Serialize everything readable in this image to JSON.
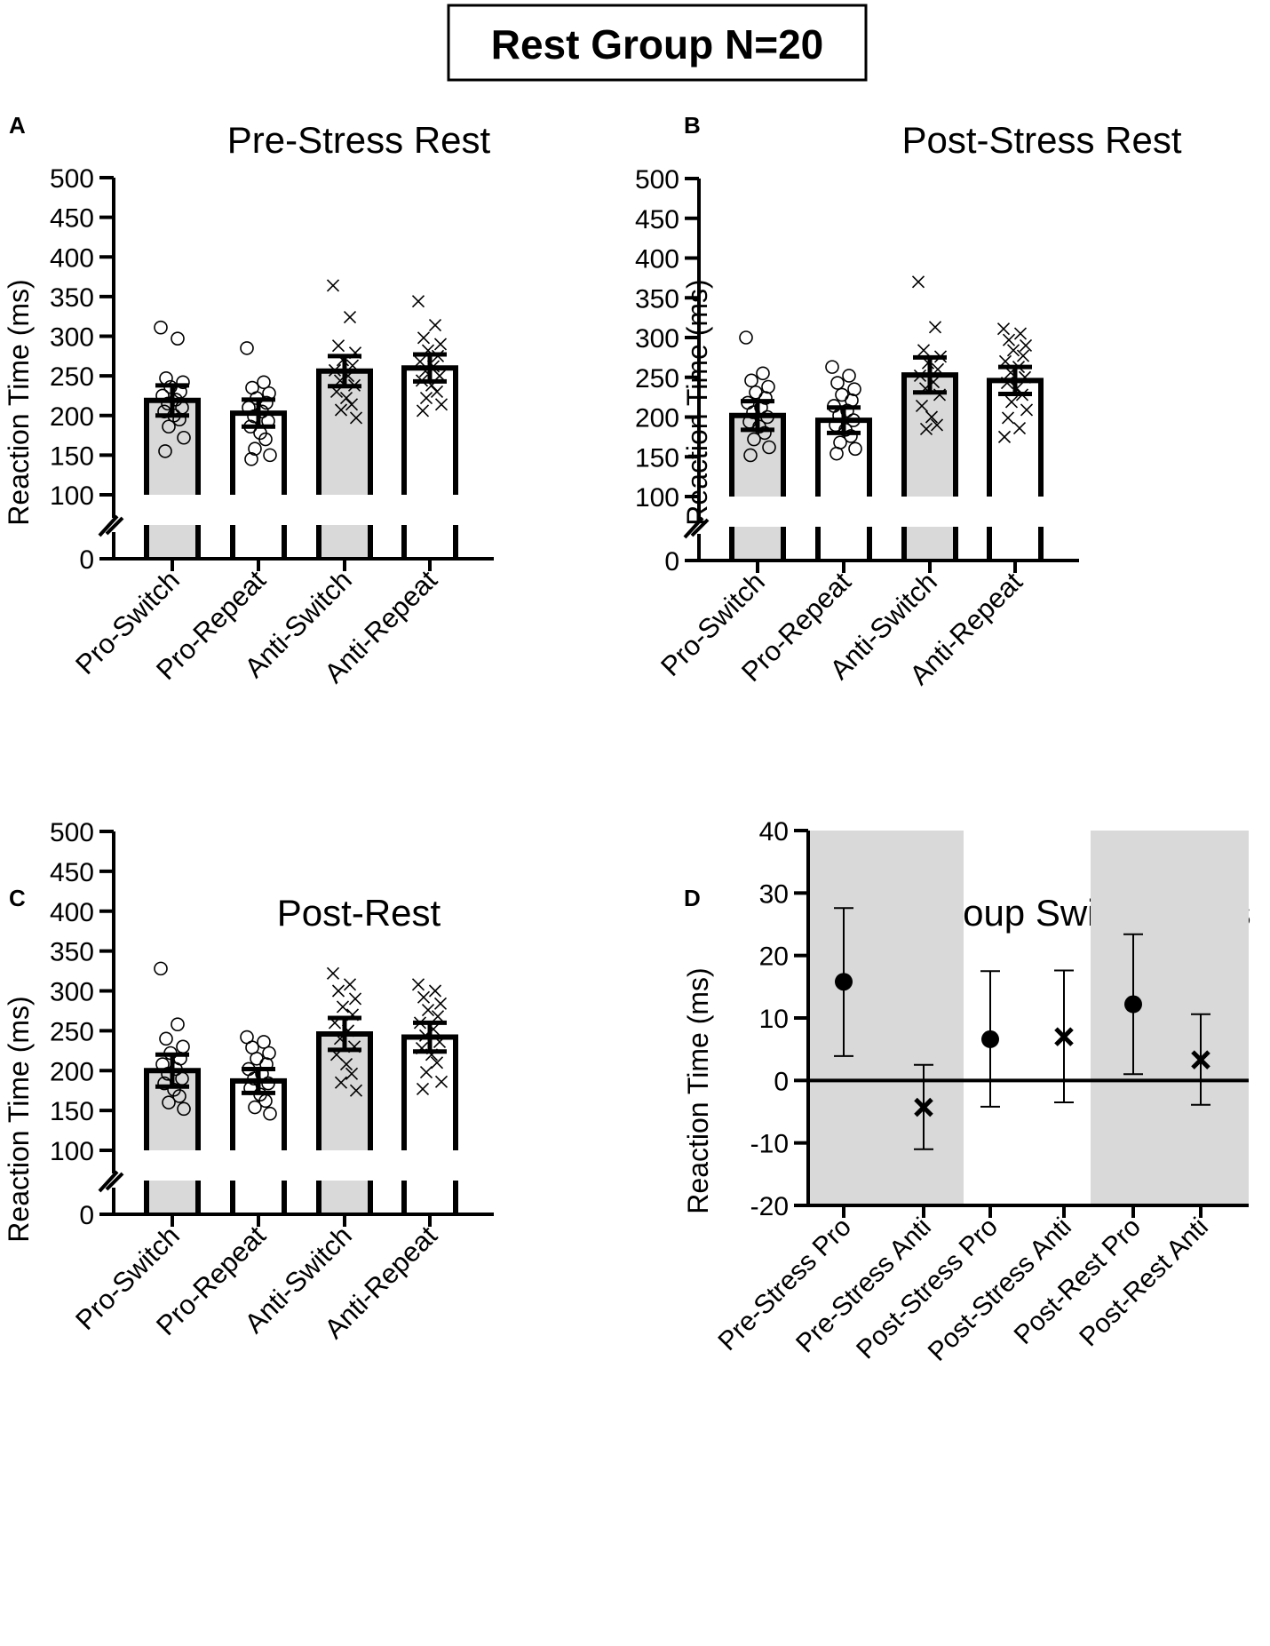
{
  "figure_title": "Rest Group N=20",
  "chart_data": [
    {
      "panel_letter": "A",
      "type": "bar",
      "title": "Pre-Stress Rest",
      "ylabel": "Reaction Time (ms)",
      "xlabel": "",
      "ylim": [
        0,
        500
      ],
      "axis_break": [
        0,
        100
      ],
      "yticks": [
        "0",
        "100",
        "150",
        "200",
        "250",
        "300",
        "350",
        "400",
        "450",
        "500"
      ],
      "categories": [
        "Pro-Switch",
        "Pro-Repeat",
        "Anti-Switch",
        "Anti-Repeat"
      ],
      "values": [
        219,
        203,
        256,
        260
      ],
      "sem": [
        19,
        17,
        19,
        17
      ],
      "bar_fill": [
        "#d9d9d9",
        "#ffffff",
        "#d9d9d9",
        "#ffffff"
      ],
      "points": [
        [
          311,
          297,
          247,
          242,
          236,
          230,
          225,
          220,
          215,
          210,
          205,
          200,
          195,
          186,
          172,
          155
        ],
        [
          285,
          242,
          235,
          228,
          222,
          216,
          210,
          205,
          199,
          193,
          186,
          178,
          170,
          158,
          150,
          145
        ],
        [
          364,
          324,
          288,
          279,
          270,
          263,
          257,
          250,
          244,
          238,
          230,
          222,
          214,
          207,
          197
        ],
        [
          344,
          314,
          298,
          290,
          282,
          275,
          268,
          262,
          256,
          250,
          244,
          238,
          230,
          222,
          214,
          206
        ]
      ],
      "markers": [
        "circle",
        "circle",
        "x",
        "x"
      ]
    },
    {
      "panel_letter": "B",
      "type": "bar",
      "title": "Post-Stress Rest",
      "ylabel": "Reaction Time (ms)",
      "xlabel": "",
      "ylim": [
        0,
        500
      ],
      "axis_break": [
        0,
        100
      ],
      "yticks": [
        "0",
        "100",
        "150",
        "200",
        "250",
        "300",
        "350",
        "400",
        "450",
        "500"
      ],
      "categories": [
        "Pro-Switch",
        "Pro-Repeat",
        "Anti-Switch",
        "Anti-Repeat"
      ],
      "values": [
        202,
        196,
        253,
        246
      ],
      "sem": [
        18,
        16,
        22,
        17
      ],
      "bar_fill": [
        "#d9d9d9",
        "#ffffff",
        "#d9d9d9",
        "#ffffff"
      ],
      "points": [
        [
          300,
          255,
          246,
          238,
          231,
          224,
          218,
          212,
          206,
          200,
          194,
          188,
          180,
          172,
          162,
          152
        ],
        [
          263,
          252,
          243,
          235,
          228,
          221,
          214,
          208,
          202,
          196,
          190,
          184,
          176,
          168,
          160,
          154
        ],
        [
          370,
          313,
          284,
          276,
          268,
          260,
          252,
          244,
          236,
          228,
          214,
          200,
          190,
          185
        ],
        [
          311,
          305,
          297,
          290,
          284,
          277,
          270,
          263,
          256,
          250,
          243,
          236,
          228,
          219,
          209,
          199,
          186,
          175
        ]
      ],
      "markers": [
        "circle",
        "circle",
        "x",
        "x"
      ]
    },
    {
      "panel_letter": "C",
      "type": "bar",
      "title": "Post-Rest",
      "ylabel": "Reaction Time (ms)",
      "xlabel": "",
      "ylim": [
        0,
        500
      ],
      "axis_break": [
        0,
        100
      ],
      "yticks": [
        "0",
        "100",
        "150",
        "200",
        "250",
        "300",
        "350",
        "400",
        "450",
        "500"
      ],
      "categories": [
        "Pro-Switch",
        "Pro-Repeat",
        "Anti-Switch",
        "Anti-Repeat"
      ],
      "values": [
        200,
        187,
        246,
        242
      ],
      "sem": [
        20,
        15,
        20,
        18
      ],
      "bar_fill": [
        "#d9d9d9",
        "#ffffff",
        "#d9d9d9",
        "#ffffff"
      ],
      "points": [
        [
          328,
          258,
          240,
          230,
          222,
          215,
          208,
          202,
          196,
          190,
          184,
          176,
          168,
          160,
          152
        ],
        [
          242,
          236,
          229,
          222,
          215,
          208,
          202,
          196,
          190,
          184,
          178,
          170,
          162,
          154,
          146
        ],
        [
          322,
          308,
          300,
          290,
          280,
          270,
          260,
          250,
          240,
          230,
          220,
          208,
          196,
          185,
          175
        ],
        [
          308,
          300,
          292,
          284,
          276,
          268,
          260,
          252,
          244,
          236,
          228,
          220,
          210,
          198,
          186,
          177
        ]
      ],
      "markers": [
        "circle",
        "circle",
        "x",
        "x"
      ]
    },
    {
      "panel_letter": "D",
      "type": "scatter",
      "title": "Rest Group Switch Costs",
      "ylabel": "Reaction Time (ms)",
      "xlabel": "",
      "ylim": [
        -20,
        40
      ],
      "yticks": [
        "-20",
        "-10",
        "0",
        "10",
        "20",
        "30",
        "40"
      ],
      "categories": [
        "Pre-Stress Pro",
        "Pre-Stress Anti",
        "Post-Stress Pro",
        "Post-Stress Anti",
        "Post-Rest Pro",
        "Post-Rest Anti"
      ],
      "values": [
        15.8,
        -4.3,
        6.6,
        7.0,
        12.2,
        3.3
      ],
      "ci_low": [
        3.9,
        -11.0,
        -4.2,
        -3.5,
        1.0,
        -3.9
      ],
      "ci_high": [
        27.6,
        2.5,
        17.5,
        17.6,
        23.4,
        10.6
      ],
      "markers": [
        "circle",
        "x",
        "circle",
        "x",
        "circle",
        "x"
      ],
      "shaded_groups": [
        "Pre-Stress",
        "Post-Rest"
      ],
      "shade_color": "#d9d9d9"
    }
  ]
}
